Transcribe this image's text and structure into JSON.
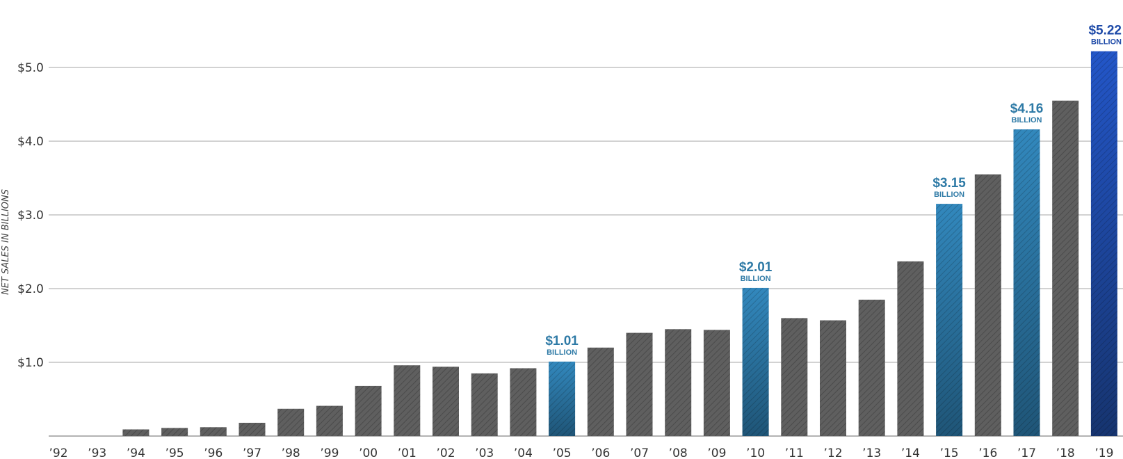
{
  "chart_data": {
    "type": "bar",
    "ylabel": "NET SALES IN BILLIONS",
    "ylim": [
      0,
      5.22
    ],
    "grid": true,
    "y_ticks": [
      {
        "value": 1.0,
        "label": "$1.0"
      },
      {
        "value": 2.0,
        "label": "$2.0"
      },
      {
        "value": 3.0,
        "label": "$3.0"
      },
      {
        "value": 4.0,
        "label": "$4.0"
      },
      {
        "value": 5.0,
        "label": "$5.0"
      }
    ],
    "categories": [
      "’92",
      "’93",
      "’94",
      "’95",
      "’96",
      "’97",
      "’98",
      "’99",
      "’00",
      "’01",
      "’02",
      "’03",
      "’04",
      "’05",
      "’06",
      "’07",
      "’08",
      "’09",
      "’10",
      "’11",
      "’12",
      "’13",
      "’14",
      "’15",
      "’16",
      "’17",
      "’18",
      "’19"
    ],
    "values": [
      0,
      0,
      0.09,
      0.11,
      0.12,
      0.18,
      0.37,
      0.41,
      0.68,
      0.96,
      0.94,
      0.85,
      0.92,
      1.01,
      1.2,
      1.4,
      1.45,
      1.44,
      2.01,
      1.6,
      1.57,
      1.85,
      2.37,
      3.15,
      3.55,
      4.16,
      4.55,
      5.22
    ],
    "highlights": [
      {
        "index": 13,
        "label": "$1.01",
        "unit": "BILLION",
        "color": "#2e7aa6"
      },
      {
        "index": 18,
        "label": "$2.01",
        "unit": "BILLION",
        "color": "#2e7aa6"
      },
      {
        "index": 23,
        "label": "$3.15",
        "unit": "BILLION",
        "color": "#2e7aa6"
      },
      {
        "index": 25,
        "label": "$4.16",
        "unit": "BILLION",
        "color": "#2e7aa6"
      },
      {
        "index": 27,
        "label": "$5.22",
        "unit": "BILLION",
        "color": "#1e4aa8"
      }
    ],
    "colors": {
      "bar": "#5f5f5f",
      "highlight_blue": "#2e7aa6",
      "final_blue": "#1e4aa8",
      "grid": "#c4c4c4",
      "axis": "#9a9a9a"
    }
  }
}
